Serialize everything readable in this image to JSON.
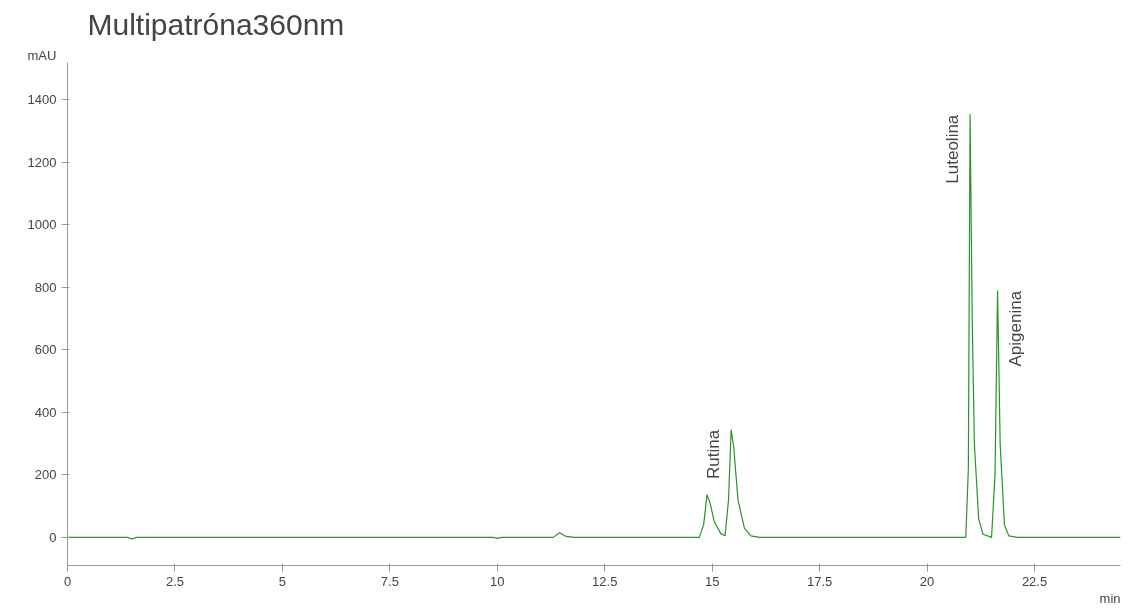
{
  "chart_data": {
    "type": "line",
    "title": "Multipatróna360nm",
    "ylabel": "mAU",
    "xlabel": "min",
    "xlim": [
      0,
      24.5
    ],
    "xticks": [
      0,
      2.5,
      5,
      7.5,
      10,
      12.5,
      15,
      17.5,
      20,
      22.5
    ],
    "ylim": [
      -90,
      1520
    ],
    "yticks": [
      0,
      200,
      400,
      600,
      800,
      1000,
      1200,
      1400
    ],
    "grid": false,
    "marker": "none",
    "line_style": "solid",
    "series": [
      {
        "color": "#2a942a",
        "x": [
          0,
          1.4,
          1.5,
          1.6,
          9.9,
          10.0,
          10.1,
          11.3,
          11.45,
          11.6,
          11.8,
          14.7,
          14.8,
          14.88,
          14.95,
          15.05,
          15.2,
          15.3,
          15.38,
          15.44,
          15.5,
          15.6,
          15.75,
          15.9,
          16.1,
          20.9,
          20.96,
          21.0,
          21.05,
          21.1,
          21.2,
          21.3,
          21.5,
          21.58,
          21.64,
          21.7,
          21.8,
          21.9,
          22.1,
          24.5
        ],
        "values": [
          0,
          0,
          -5,
          0,
          0,
          -3,
          0,
          0,
          15,
          3,
          0,
          0,
          40,
          136,
          110,
          50,
          12,
          5,
          120,
          344,
          290,
          120,
          30,
          5,
          0,
          0,
          220,
          1353,
          700,
          300,
          60,
          10,
          0,
          200,
          789,
          300,
          40,
          5,
          0,
          0
        ]
      }
    ],
    "annotations": [
      {
        "text": "Rutina",
        "x": 15.44,
        "y": 344
      },
      {
        "text": "Luteolina",
        "x": 21.0,
        "y": 1353
      },
      {
        "text": "Apigenina",
        "x": 21.64,
        "y": 789
      }
    ]
  }
}
